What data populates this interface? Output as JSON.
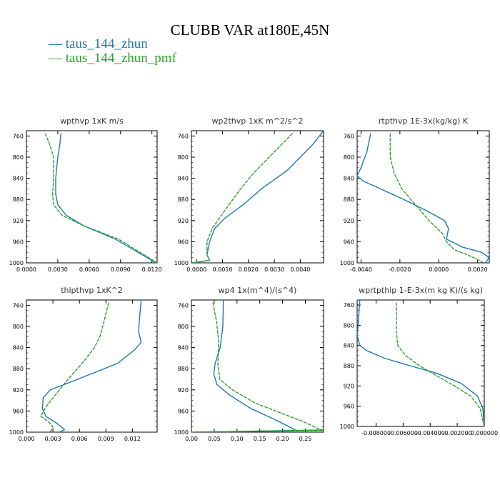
{
  "figure": {
    "title": "CLUBB VAR at180E,45N",
    "legend": [
      {
        "dash": "—",
        "label": "taus_144_zhun",
        "color": "#1f77b4"
      },
      {
        "dash": "—",
        "label": "taus_144_zhun_pmf",
        "color": "#2ca02c"
      }
    ]
  },
  "chart_data": [
    {
      "type": "line",
      "title": "wpthvp   1xK m/s",
      "xlim": [
        0.0,
        0.0125
      ],
      "ylim": [
        750,
        1000
      ],
      "xticks": [
        0.0,
        0.003,
        0.006,
        0.009,
        0.012
      ],
      "xtick_labels": [
        "0.0000",
        "0.0030",
        "0.0060",
        "0.0090",
        "0.0120"
      ],
      "yticks": [
        760,
        800,
        840,
        880,
        920,
        960,
        1000
      ],
      "ytick_labels": [
        "760",
        "800",
        "840",
        "880",
        "920",
        "960",
        "1000"
      ],
      "series": [
        {
          "name": "taus_144_zhun",
          "color": "#1f77b4",
          "x": [
            0.0033,
            0.0032,
            0.003,
            0.0028,
            0.0028,
            0.003,
            0.0038,
            0.0055,
            0.0085,
            0.0124
          ],
          "y": [
            755,
            775,
            800,
            840,
            870,
            890,
            910,
            930,
            955,
            1000
          ]
        },
        {
          "name": "taus_144_zhun_pmf",
          "color": "#2ca02c",
          "x": [
            0.0018,
            0.0022,
            0.0026,
            0.0026,
            0.0025,
            0.0026,
            0.0034,
            0.0055,
            0.0088,
            0.0125
          ],
          "y": [
            755,
            775,
            800,
            840,
            870,
            890,
            910,
            930,
            955,
            1000
          ]
        }
      ]
    },
    {
      "type": "line",
      "title": "wp2thvp   1xK m^2/s^2",
      "xlim": [
        -0.0002,
        0.0049
      ],
      "ylim": [
        750,
        1000
      ],
      "xticks": [
        0.0,
        0.001,
        0.002,
        0.003,
        0.004
      ],
      "xtick_labels": [
        "0.0000",
        "0.0010",
        "0.0020",
        "0.0030",
        "0.0040"
      ],
      "yticks": [
        760,
        800,
        840,
        880,
        920,
        960,
        1000
      ],
      "ytick_labels": [
        "760",
        "800",
        "840",
        "880",
        "920",
        "960",
        "1000"
      ],
      "series": [
        {
          "name": "taus_144_zhun",
          "color": "#1f77b4",
          "x": [
            0.0049,
            0.0045,
            0.004,
            0.0035,
            0.0025,
            0.0018,
            0.0011,
            0.0007,
            0.0005,
            0.0004,
            0.0005,
            0.0,
            -0.0002
          ],
          "y": [
            750,
            775,
            800,
            825,
            860,
            890,
            915,
            935,
            960,
            985,
            995,
            999,
            1000
          ]
        },
        {
          "name": "taus_144_zhun_pmf",
          "color": "#2ca02c",
          "x": [
            0.0037,
            0.0033,
            0.0028,
            0.0022,
            0.0017,
            0.0011,
            0.0006,
            0.0004,
            0.0004,
            0.0005,
            0.0,
            -0.0002
          ],
          "y": [
            755,
            775,
            800,
            830,
            860,
            900,
            935,
            960,
            985,
            995,
            999,
            1000
          ]
        }
      ]
    },
    {
      "type": "line",
      "title": "rtpthvp   1E-3x(kg/kg) K",
      "xlim": [
        -0.0042,
        0.0026
      ],
      "ylim": [
        750,
        1000
      ],
      "xticks": [
        -0.004,
        -0.002,
        0.0,
        0.002
      ],
      "xtick_labels": [
        "-0.0040",
        "-0.0020",
        "0.0000",
        "0.0020"
      ],
      "yticks": [
        760,
        800,
        840,
        880,
        920,
        960,
        1000
      ],
      "ytick_labels": [
        "760",
        "800",
        "840",
        "880",
        "920",
        "960",
        "1000"
      ],
      "series": [
        {
          "name": "taus_144_zhun",
          "color": "#1f77b4",
          "x": [
            -0.0035,
            -0.0037,
            -0.004,
            -0.0042,
            -0.0039,
            -0.003,
            -0.0018,
            -0.0007,
            0.0003,
            0.0005,
            0.0004,
            0.0012,
            0.0022,
            0.0026,
            0.0024
          ],
          "y": [
            755,
            790,
            820,
            835,
            845,
            860,
            880,
            900,
            920,
            935,
            955,
            970,
            980,
            990,
            1000
          ]
        },
        {
          "name": "taus_144_zhun_pmf",
          "color": "#2ca02c",
          "x": [
            -0.0025,
            -0.0025,
            -0.0023,
            -0.0019,
            -0.0012,
            -0.0005,
            0.0002,
            0.0004,
            0.0008,
            0.0018,
            0.0023
          ],
          "y": [
            755,
            800,
            830,
            860,
            890,
            920,
            945,
            960,
            975,
            990,
            1000
          ]
        }
      ]
    },
    {
      "type": "line",
      "title": "thlpthvp   1xK^2",
      "xlim": [
        0.0,
        0.0148
      ],
      "ylim": [
        750,
        1000
      ],
      "xticks": [
        0.0,
        0.003,
        0.006,
        0.009,
        0.012
      ],
      "xtick_labels": [
        "0.000",
        "0.003",
        "0.006",
        "0.009",
        "0.012"
      ],
      "yticks": [
        760,
        800,
        840,
        880,
        920,
        960,
        1000
      ],
      "ytick_labels": [
        "760",
        "800",
        "840",
        "880",
        "920",
        "960",
        "1000"
      ],
      "series": [
        {
          "name": "taus_144_zhun",
          "color": "#1f77b4",
          "x": [
            0.013,
            0.0128,
            0.0127,
            0.013,
            0.0122,
            0.0103,
            0.0058,
            0.0027,
            0.0019,
            0.0018,
            0.0022,
            0.0036,
            0.0043,
            0.0038
          ],
          "y": [
            750,
            785,
            810,
            830,
            845,
            870,
            900,
            920,
            935,
            955,
            970,
            985,
            995,
            1000
          ]
        },
        {
          "name": "taus_144_zhun_pmf",
          "color": "#2ca02c",
          "x": [
            0.0093,
            0.0088,
            0.0083,
            0.0077,
            0.0063,
            0.0047,
            0.0035,
            0.0023,
            0.0016,
            0.0025,
            0.003,
            0.0027
          ],
          "y": [
            755,
            790,
            820,
            840,
            870,
            900,
            925,
            950,
            970,
            980,
            990,
            1000
          ]
        }
      ]
    },
    {
      "type": "line",
      "title": "wp4   1x(m^4)/(s^4)",
      "xlim": [
        0.0,
        0.29
      ],
      "ylim": [
        750,
        1000
      ],
      "xticks": [
        0.0,
        0.05,
        0.1,
        0.15,
        0.2,
        0.25
      ],
      "xtick_labels": [
        "0.00",
        "0.05",
        "0.10",
        "0.15",
        "0.20",
        "0.25"
      ],
      "yticks": [
        760,
        800,
        840,
        880,
        920,
        960,
        1000
      ],
      "ytick_labels": [
        "760",
        "800",
        "840",
        "880",
        "920",
        "960",
        "1000"
      ],
      "series": [
        {
          "name": "taus_144_zhun",
          "color": "#1f77b4",
          "x": [
            0.07,
            0.069,
            0.063,
            0.052,
            0.049,
            0.056,
            0.084,
            0.13,
            0.18,
            0.215,
            0.23,
            0.0,
            0.29
          ],
          "y": [
            750,
            800,
            840,
            870,
            890,
            910,
            930,
            955,
            975,
            990,
            997,
            1000,
            996
          ]
        },
        {
          "name": "taus_144_zhun_pmf",
          "color": "#2ca02c",
          "x": [
            0.047,
            0.055,
            0.06,
            0.058,
            0.062,
            0.09,
            0.14,
            0.2,
            0.245,
            0.275,
            0.29,
            0.0,
            0.29
          ],
          "y": [
            755,
            790,
            830,
            870,
            900,
            920,
            945,
            965,
            980,
            992,
            997,
            1000,
            996
          ]
        }
      ]
    },
    {
      "type": "line",
      "title": "wprtpthlp   1-E-3x(m kg K)/(s kg)",
      "xlim": [
        -0.0094,
        0.0
      ],
      "ylim": [
        750,
        1000
      ],
      "xticks": [
        -0.008,
        -0.006,
        -0.004,
        -0.002,
        0.0
      ],
      "xtick_labels": [
        "-0.008000",
        "-0.006000",
        "-0.004000",
        "-0.002000",
        "0.000000"
      ],
      "yticks": [
        760,
        800,
        840,
        880,
        920,
        960,
        1000
      ],
      "ytick_labels": [
        "760",
        "800",
        "840",
        "880",
        "920",
        "960",
        "1000"
      ],
      "series": [
        {
          "name": "taus_144_zhun",
          "color": "#1f77b4",
          "x": [
            -0.0092,
            -0.0093,
            -0.0094,
            -0.0092,
            -0.0087,
            -0.0074,
            -0.0055,
            -0.0035,
            -0.0017,
            -0.0005,
            -0.0001,
            0.0
          ],
          "y": [
            750,
            790,
            820,
            840,
            850,
            865,
            880,
            895,
            915,
            940,
            965,
            1000
          ]
        },
        {
          "name": "taus_144_zhun_pmf",
          "color": "#2ca02c",
          "x": [
            -0.0065,
            -0.0065,
            -0.0065,
            -0.0064,
            -0.0058,
            -0.0048,
            -0.0035,
            -0.0022,
            -0.001,
            -0.0003,
            0.0
          ],
          "y": [
            755,
            790,
            810,
            840,
            860,
            880,
            900,
            920,
            940,
            965,
            1000
          ]
        }
      ]
    }
  ]
}
